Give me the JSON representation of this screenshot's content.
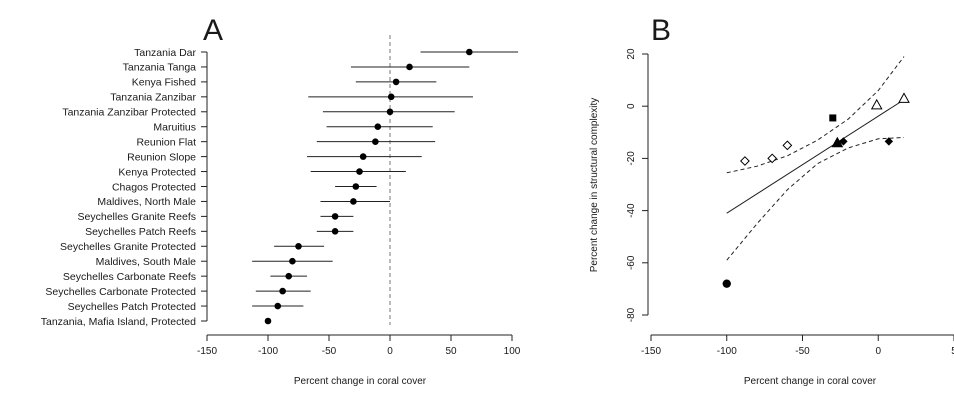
{
  "chart_data": [
    {
      "panel": "A",
      "type": "scatter",
      "xlabel": "Percent change in coral cover",
      "ylabel": "",
      "xlim": [
        -150,
        100
      ],
      "xticks": [
        "-150",
        "-100",
        "-50",
        "0",
        "50",
        "100"
      ],
      "categories": [
        "Tanzania Dar",
        "Tanzania Tanga",
        "Kenya Fished",
        "Tanzania Zanzibar",
        "Tanzania Zanzibar Protected",
        "Maruitius",
        "Reunion Flat",
        "Reunion Slope",
        "Kenya Protected",
        "Chagos Protected",
        "Maldives, North Male",
        "Seychelles Granite Reefs",
        "Seychelles Patch Reefs",
        "Seychelles Granite Protected",
        "Maldives, South Male",
        "Seychelles Carbonate Reefs",
        "Seychelles Carbonate Protected",
        "Seychelles Patch Protected",
        "Tanzania, Mafia Island, Protected"
      ],
      "values": [
        65,
        16,
        5,
        1,
        0,
        -10,
        -12,
        -22,
        -25,
        -28,
        -30,
        -45,
        -45,
        -75,
        -80,
        -83,
        -88,
        -92,
        -100
      ],
      "ci_low": [
        25,
        -32,
        -28,
        -67,
        -55,
        -52,
        -60,
        -68,
        -65,
        -45,
        -57,
        -57,
        -60,
        -95,
        -113,
        -98,
        -110,
        -113,
        -100
      ],
      "ci_high": [
        105,
        65,
        38,
        68,
        53,
        35,
        37,
        26,
        13,
        -11,
        0,
        -30,
        -30,
        -54,
        -47,
        -68,
        -65,
        -71,
        -100
      ],
      "reference_line": 0
    },
    {
      "panel": "B",
      "type": "scatter",
      "xlabel": "Percent change in coral cover",
      "ylabel": "Percent change in structural complexity",
      "xlim": [
        -150,
        50
      ],
      "ylim": [
        -80,
        20
      ],
      "xticks": [
        "-150",
        "-100",
        "-50",
        "0",
        "5"
      ],
      "yticks": [
        "20",
        "0",
        "-20",
        "-40",
        "-60",
        "-80"
      ],
      "points": [
        {
          "x": -100,
          "y": -68,
          "marker": "filled-circle-large"
        },
        {
          "x": -30,
          "y": -4.5,
          "marker": "filled-square"
        },
        {
          "x": -27,
          "y": -14,
          "marker": "filled-triangle"
        },
        {
          "x": -23,
          "y": -13.5,
          "marker": "filled-diamond"
        },
        {
          "x": 7,
          "y": -13.5,
          "marker": "filled-diamond"
        },
        {
          "x": -88,
          "y": -21,
          "marker": "open-diamond"
        },
        {
          "x": -70,
          "y": -20,
          "marker": "open-diamond"
        },
        {
          "x": -60,
          "y": -15,
          "marker": "open-diamond"
        },
        {
          "x": -1,
          "y": 0.5,
          "marker": "open-triangle"
        },
        {
          "x": 17,
          "y": 3,
          "marker": "open-triangle"
        }
      ],
      "fit_line": {
        "x": [
          -100,
          17
        ],
        "y": [
          -41,
          2.5
        ]
      },
      "ci_upper": {
        "x": [
          -100,
          -80,
          -60,
          -40,
          -20,
          0,
          17
        ],
        "y": [
          -25.5,
          -23,
          -19,
          -13,
          -5,
          6,
          19
        ]
      },
      "ci_lower": {
        "x": [
          -100,
          -80,
          -60,
          -40,
          -20,
          0,
          17
        ],
        "y": [
          -59,
          -45,
          -32,
          -22,
          -16,
          -12.5,
          -12
        ]
      }
    }
  ],
  "panels": {
    "a_letter": "A",
    "b_letter": "B"
  }
}
